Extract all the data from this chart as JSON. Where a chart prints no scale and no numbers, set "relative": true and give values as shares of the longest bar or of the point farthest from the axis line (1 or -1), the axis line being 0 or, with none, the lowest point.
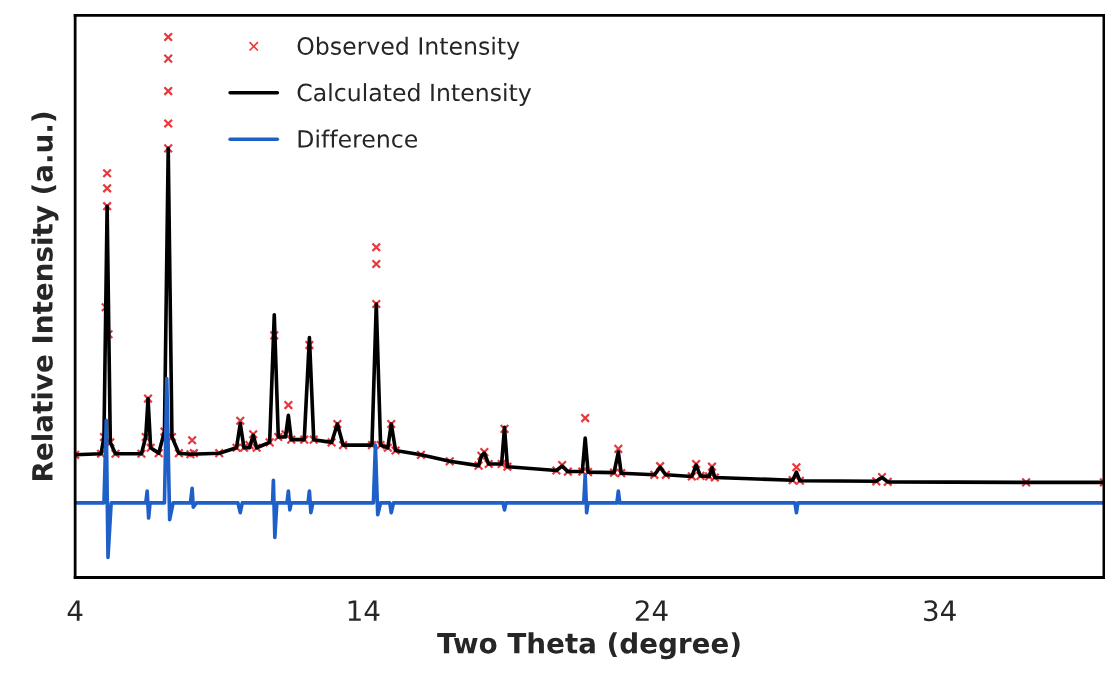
{
  "chart_data": {
    "type": "line",
    "xlabel": "Two Theta (degree)",
    "ylabel": "Relative Intensity (a.u.)",
    "relative": true,
    "xlim": [
      4,
      39.7
    ],
    "xticks": [
      4,
      14,
      24,
      34
    ],
    "grid": false,
    "legend": "top left",
    "series": [
      {
        "name": "Observed Intensity",
        "type": "scatter",
        "marker": "cross",
        "color": "#e8383d",
        "x": [
          4.0,
          4.9,
          5.0,
          5.06,
          5.11,
          5.11,
          5.11,
          5.16,
          5.22,
          5.4,
          6.3,
          6.45,
          6.53,
          6.62,
          6.9,
          7.1,
          7.23,
          7.23,
          7.23,
          7.23,
          7.23,
          7.36,
          7.6,
          8.0,
          8.06,
          8.12,
          9.0,
          9.6,
          9.73,
          9.86,
          10.05,
          10.18,
          10.3,
          10.75,
          10.91,
          11.05,
          11.3,
          11.4,
          11.5,
          11.95,
          12.13,
          12.28,
          12.9,
          13.1,
          13.3,
          14.3,
          14.45,
          14.45,
          14.45,
          14.6,
          14.85,
          14.97,
          15.12,
          16.0,
          17.0,
          18.0,
          18.1,
          18.2,
          18.35,
          18.8,
          18.9,
          19.0,
          20.7,
          20.9,
          21.1,
          21.6,
          21.7,
          21.8,
          22.7,
          22.85,
          22.95,
          24.1,
          24.3,
          24.5,
          25.4,
          25.55,
          25.7,
          26.0,
          26.1,
          26.2,
          28.9,
          29.03,
          29.15,
          31.8,
          32.0,
          32.2,
          37.0,
          39.7
        ],
        "values": [
          0.227,
          0.229,
          0.26,
          0.5,
          0.687,
          0.72,
          0.748,
          0.45,
          0.25,
          0.229,
          0.229,
          0.26,
          0.331,
          0.24,
          0.23,
          0.27,
          0.794,
          0.84,
          0.9,
          0.96,
          1.0,
          0.26,
          0.23,
          0.228,
          0.254,
          0.23,
          0.23,
          0.24,
          0.29,
          0.24,
          0.245,
          0.265,
          0.24,
          0.25,
          0.448,
          0.26,
          0.265,
          0.319,
          0.255,
          0.255,
          0.43,
          0.255,
          0.25,
          0.284,
          0.245,
          0.245,
          0.506,
          0.58,
          0.611,
          0.245,
          0.24,
          0.284,
          0.235,
          0.227,
          0.215,
          0.207,
          0.225,
          0.232,
          0.21,
          0.21,
          0.275,
          0.205,
          0.198,
          0.208,
          0.196,
          0.196,
          0.295,
          0.195,
          0.194,
          0.238,
          0.193,
          0.19,
          0.206,
          0.19,
          0.187,
          0.21,
          0.188,
          0.187,
          0.205,
          0.185,
          0.18,
          0.204,
          0.179,
          0.178,
          0.186,
          0.177,
          0.176,
          0.176
        ]
      },
      {
        "name": "Calculated Intensity",
        "color": "#000000",
        "x": [
          4.0,
          4.9,
          5.0,
          5.11,
          5.22,
          5.4,
          6.3,
          6.45,
          6.53,
          6.62,
          6.9,
          7.1,
          7.23,
          7.36,
          7.6,
          8.0,
          9.0,
          9.6,
          9.73,
          9.86,
          10.05,
          10.18,
          10.3,
          10.75,
          10.91,
          11.05,
          11.3,
          11.4,
          11.5,
          11.95,
          12.13,
          12.28,
          12.9,
          13.1,
          13.3,
          14.3,
          14.45,
          14.6,
          14.85,
          14.97,
          15.12,
          16.0,
          17.0,
          18.0,
          18.1,
          18.2,
          18.35,
          18.8,
          18.9,
          19.0,
          20.7,
          20.9,
          21.1,
          21.6,
          21.7,
          21.8,
          22.7,
          22.85,
          22.95,
          24.1,
          24.3,
          24.5,
          25.4,
          25.55,
          25.7,
          26.0,
          26.1,
          26.2,
          28.9,
          29.03,
          29.15,
          31.8,
          32.0,
          32.2,
          37.0,
          39.7
        ],
        "values": [
          0.227,
          0.229,
          0.26,
          0.687,
          0.25,
          0.229,
          0.229,
          0.26,
          0.331,
          0.24,
          0.23,
          0.27,
          0.794,
          0.26,
          0.23,
          0.228,
          0.23,
          0.24,
          0.285,
          0.24,
          0.24,
          0.263,
          0.24,
          0.25,
          0.486,
          0.26,
          0.26,
          0.3,
          0.255,
          0.255,
          0.444,
          0.255,
          0.25,
          0.284,
          0.245,
          0.245,
          0.506,
          0.245,
          0.24,
          0.284,
          0.235,
          0.227,
          0.215,
          0.207,
          0.225,
          0.23,
          0.21,
          0.21,
          0.278,
          0.205,
          0.198,
          0.206,
          0.196,
          0.196,
          0.258,
          0.195,
          0.194,
          0.232,
          0.193,
          0.19,
          0.204,
          0.19,
          0.187,
          0.208,
          0.188,
          0.187,
          0.203,
          0.185,
          0.18,
          0.195,
          0.179,
          0.178,
          0.185,
          0.177,
          0.176,
          0.176
        ]
      },
      {
        "name": "Difference",
        "color": "#1f5fc8",
        "x": [
          4.0,
          5.0,
          5.08,
          5.14,
          5.25,
          6.45,
          6.5,
          6.55,
          6.6,
          7.1,
          7.18,
          7.28,
          7.4,
          8.0,
          8.06,
          8.1,
          8.2,
          9.65,
          9.73,
          9.8,
          10.85,
          10.88,
          10.93,
          11.0,
          11.35,
          11.4,
          11.45,
          11.5,
          12.08,
          12.13,
          12.18,
          12.25,
          14.35,
          14.42,
          14.5,
          14.6,
          14.92,
          14.97,
          15.05,
          18.85,
          18.9,
          18.95,
          21.65,
          21.7,
          21.75,
          21.8,
          22.8,
          22.85,
          22.9,
          28.98,
          29.03,
          29.08,
          39.7
        ],
        "values": [
          0.138,
          0.138,
          0.291,
          0.037,
          0.138,
          0.138,
          0.16,
          0.11,
          0.138,
          0.138,
          0.368,
          0.107,
          0.138,
          0.138,
          0.165,
          0.13,
          0.138,
          0.138,
          0.12,
          0.138,
          0.138,
          0.18,
          0.074,
          0.138,
          0.138,
          0.16,
          0.125,
          0.138,
          0.138,
          0.16,
          0.12,
          0.138,
          0.138,
          0.245,
          0.116,
          0.138,
          0.138,
          0.12,
          0.138,
          0.138,
          0.125,
          0.138,
          0.138,
          0.19,
          0.12,
          0.138,
          0.138,
          0.16,
          0.138,
          0.138,
          0.12,
          0.138,
          0.138
        ]
      }
    ]
  }
}
